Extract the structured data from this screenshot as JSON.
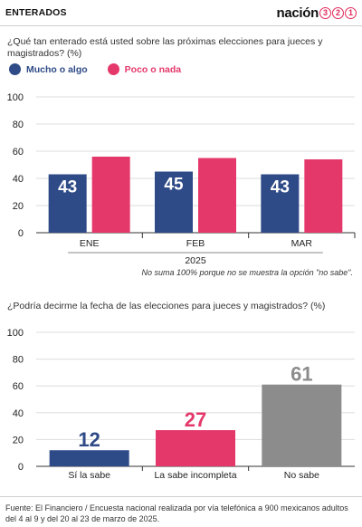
{
  "header": {
    "section": "ENTERADOS",
    "brand_word": "nación",
    "brand_digits": [
      "3",
      "2",
      "1"
    ]
  },
  "chart1": {
    "question": "¿Qué tan enterado está usted sobre las próximas  elecciones para jueces y magistrados? (%)",
    "note": "No suma 100% porque no se muestra la opción \"no sabe\"."
  },
  "chart2": {
    "question": "¿Podría decirme la fecha de las elecciones para jueces  y magistrados? (%)"
  },
  "footer": {
    "source": "Fuente: El Financiero / Encuesta nacional realizada por vía telefónica a 900 mexicanos adultos del 4 al 9 y del 20 al 23 de marzo de 2025."
  },
  "colors": {
    "blue": "#2e4a87",
    "pink": "#e4386a",
    "gray": "#8c8c8c"
  },
  "chart_data": [
    {
      "type": "bar",
      "categories": [
        "ENE",
        "FEB",
        "MAR"
      ],
      "xlabel": "2025",
      "ylim": [
        0,
        100
      ],
      "yticks": [
        0,
        20,
        40,
        60,
        80,
        100
      ],
      "grid": true,
      "legend": "top-left",
      "series": [
        {
          "name": "Mucho o algo",
          "color": "#2e4a87",
          "values": [
            43,
            45,
            43
          ]
        },
        {
          "name": "Poco o nada",
          "color": "#e4386a",
          "values": [
            56,
            55,
            54
          ]
        }
      ]
    },
    {
      "type": "bar",
      "categories": [
        "Sí la sabe",
        "La sabe incompleta",
        "No sabe"
      ],
      "ylim": [
        0,
        100
      ],
      "yticks": [
        0,
        20,
        40,
        60,
        80,
        100
      ],
      "grid": true,
      "values": [
        12,
        27,
        61
      ],
      "colors": [
        "#2e4a87",
        "#e4386a",
        "#8c8c8c"
      ]
    }
  ]
}
